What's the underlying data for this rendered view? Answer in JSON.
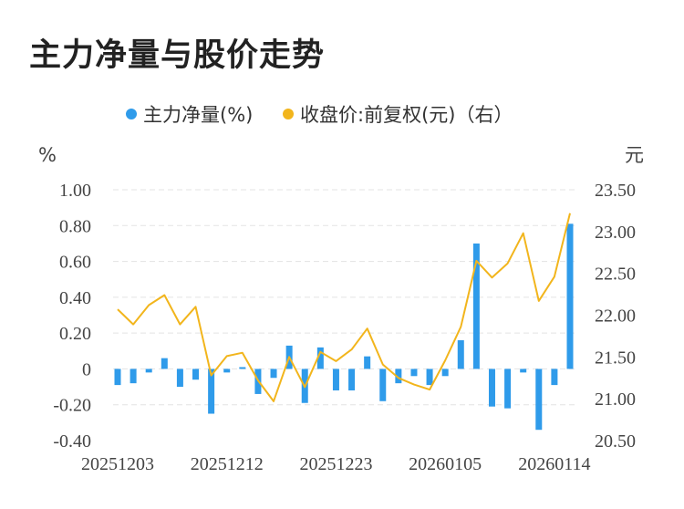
{
  "title": "主力净量与股价走势",
  "chart_data": {
    "type": "bar+line",
    "legend": {
      "items": [
        {
          "label": "主力净量(%)",
          "color": "#2f9bea"
        },
        {
          "label": "收盘价:前复权(元)（右）",
          "color": "#f2b51c"
        }
      ],
      "position": "top-center"
    },
    "left_axis": {
      "unit": "%",
      "ylim": [
        -0.4,
        1.0
      ],
      "ticks": [
        "1.00",
        "0.80",
        "0.60",
        "0.40",
        "0.20",
        "0",
        "-0.20",
        "-0.40"
      ],
      "tick_values": [
        1.0,
        0.8,
        0.6,
        0.4,
        0.2,
        0,
        -0.2,
        -0.4
      ]
    },
    "right_axis": {
      "unit": "元",
      "ylim": [
        20.5,
        23.5
      ],
      "ticks": [
        "23.50",
        "23.00",
        "22.50",
        "22.00",
        "21.50",
        "21.00",
        "20.50"
      ],
      "tick_values": [
        23.5,
        23.0,
        22.5,
        22.0,
        21.5,
        21.0,
        20.5
      ]
    },
    "x_tick_labels": [
      {
        "label": "20251203",
        "index": 0
      },
      {
        "label": "20251212",
        "index": 7
      },
      {
        "label": "20251223",
        "index": 14
      },
      {
        "label": "20260105",
        "index": 21
      },
      {
        "label": "20260114",
        "index": 28
      }
    ],
    "grid": "horizontal-dashed",
    "series": [
      {
        "name": "主力净量(%)",
        "type": "bar",
        "axis": "left",
        "color": "#2f9bea",
        "values": [
          -0.09,
          -0.08,
          -0.02,
          0.06,
          -0.1,
          -0.06,
          -0.25,
          -0.02,
          0.01,
          -0.14,
          -0.05,
          0.13,
          -0.19,
          0.12,
          -0.12,
          -0.12,
          0.07,
          -0.18,
          -0.08,
          -0.04,
          -0.09,
          -0.04,
          0.16,
          0.7,
          -0.21,
          -0.22,
          -0.02,
          -0.34,
          -0.09,
          0.81
        ]
      },
      {
        "name": "收盘价:前复权(元)（右）",
        "type": "line",
        "axis": "right",
        "color": "#f2b51c",
        "values": [
          22.07,
          21.89,
          22.12,
          22.24,
          21.89,
          22.1,
          21.28,
          21.51,
          21.55,
          21.22,
          20.97,
          21.5,
          21.14,
          21.56,
          21.45,
          21.59,
          21.84,
          21.41,
          21.25,
          21.17,
          21.11,
          21.46,
          21.86,
          22.65,
          22.45,
          22.62,
          22.98,
          22.17,
          22.46,
          23.22
        ]
      }
    ]
  }
}
